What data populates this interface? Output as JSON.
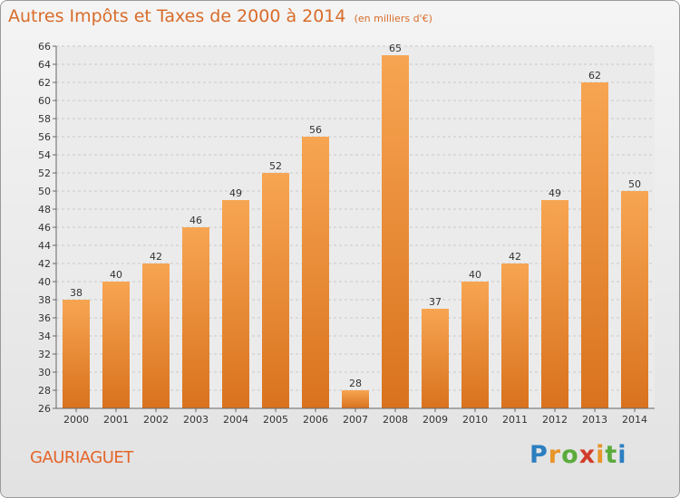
{
  "title": "Autres Impôts et Taxes de 2000 à 2014",
  "subtitle": "(en milliers d'€)",
  "commune": "GAURIAGUET",
  "logo": {
    "letters": [
      "P",
      "r",
      "o",
      "x",
      "i",
      "t",
      "i"
    ],
    "colors": [
      "#2c7fc0",
      "#e8952a",
      "#5bab3c",
      "#d23d2a",
      "#e8952a",
      "#5bab3c",
      "#2c7fc0"
    ]
  },
  "chart_data": {
    "type": "bar",
    "title": "Autres Impôts et Taxes de 2000 à 2014",
    "subtitle": "(en milliers d'€)",
    "categories": [
      "2000",
      "2001",
      "2002",
      "2003",
      "2004",
      "2005",
      "2006",
      "2007",
      "2008",
      "2009",
      "2010",
      "2011",
      "2012",
      "2013",
      "2014"
    ],
    "values": [
      38,
      40,
      42,
      46,
      49,
      52,
      56,
      28,
      65,
      37,
      40,
      42,
      49,
      62,
      50
    ],
    "ylim": [
      26,
      66
    ],
    "ytick_step": 2,
    "grid": true,
    "bar_color": "#f0922f"
  }
}
